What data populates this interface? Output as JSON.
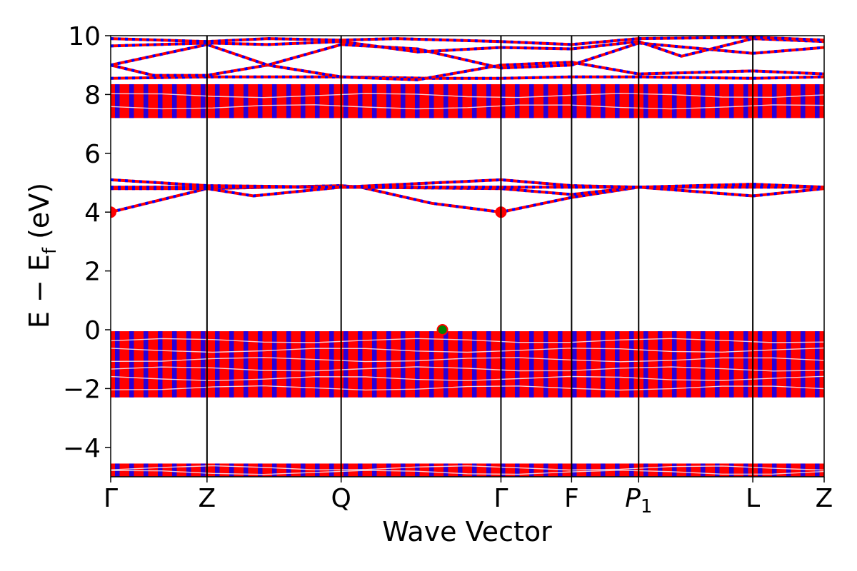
{
  "chart_data": {
    "type": "line",
    "xlabel": "Wave Vector",
    "ylabel_parts": {
      "main": "E − E",
      "sub": "f",
      "unit": " (eV)"
    },
    "ylim": [
      -5,
      10
    ],
    "yticks": [
      {
        "value": -4,
        "label": "−4"
      },
      {
        "value": -2,
        "label": "−2"
      },
      {
        "value": 0,
        "label": "0"
      },
      {
        "value": 2,
        "label": "2"
      },
      {
        "value": 4,
        "label": "4"
      },
      {
        "value": 6,
        "label": "6"
      },
      {
        "value": 8,
        "label": "8"
      },
      {
        "value": 10,
        "label": "10"
      }
    ],
    "kpoints": [
      {
        "label": "Γ",
        "pos": 0.0
      },
      {
        "label": "Z",
        "pos": 0.135
      },
      {
        "label": "Q",
        "pos": 0.323
      },
      {
        "label": "Γ",
        "pos": 0.547
      },
      {
        "label": "F",
        "pos": 0.646
      },
      {
        "label": "P",
        "sub": "1",
        "pos": 0.74
      },
      {
        "label": "L",
        "pos": 0.9
      },
      {
        "label": "Z",
        "pos": 1.0
      }
    ],
    "spin_colors": {
      "up": "#ff0000",
      "down": "#0000ff"
    },
    "dense_bands": [
      {
        "name": "valence-low",
        "top": -4.55,
        "bottom": -5.0
      },
      {
        "name": "valence",
        "top": -0.05,
        "bottom": -2.3
      },
      {
        "name": "conduction-upper",
        "top": 8.35,
        "bottom": 7.2
      }
    ],
    "bands": [
      {
        "x": [
          0,
          0.135,
          0.323,
          0.35,
          0.45,
          0.547,
          0.646,
          0.74,
          0.9,
          1.0
        ],
        "y": [
          4.0,
          4.8,
          4.9,
          4.85,
          4.3,
          4.0,
          4.5,
          4.85,
          4.55,
          4.8
        ]
      },
      {
        "x": [
          0,
          0.135,
          0.2,
          0.323,
          0.547,
          0.646,
          0.74,
          0.9,
          1.0
        ],
        "y": [
          4.8,
          4.8,
          4.55,
          4.85,
          4.8,
          4.6,
          4.85,
          4.9,
          4.85
        ]
      },
      {
        "x": [
          0,
          0.135,
          0.323,
          0.547,
          0.646,
          0.74,
          0.9,
          1.0
        ],
        "y": [
          5.1,
          4.9,
          4.85,
          5.1,
          4.9,
          4.85,
          4.85,
          4.85
        ]
      },
      {
        "x": [
          0,
          0.135,
          0.323,
          0.547,
          0.646,
          0.74,
          0.9,
          1.0
        ],
        "y": [
          4.85,
          4.85,
          4.85,
          4.85,
          4.85,
          4.85,
          4.95,
          4.85
        ]
      },
      {
        "x": [
          0,
          0.135,
          0.2,
          0.323,
          0.45,
          0.547,
          0.646,
          0.74,
          0.9,
          1.0
        ],
        "y": [
          8.55,
          8.6,
          8.6,
          8.6,
          8.55,
          8.55,
          8.6,
          8.6,
          8.55,
          8.6
        ]
      },
      {
        "x": [
          0,
          0.06,
          0.135,
          0.22,
          0.323,
          0.43,
          0.547,
          0.646,
          0.74,
          0.9,
          1.0
        ],
        "y": [
          9.0,
          8.65,
          8.65,
          9.0,
          8.6,
          8.5,
          9.0,
          9.1,
          8.7,
          8.8,
          8.7
        ]
      },
      {
        "x": [
          0,
          0.135,
          0.22,
          0.323,
          0.43,
          0.547,
          0.646,
          0.74,
          0.9,
          1.0
        ],
        "y": [
          9.0,
          9.7,
          9.0,
          9.7,
          9.55,
          8.9,
          9.0,
          9.75,
          9.4,
          9.6
        ]
      },
      {
        "x": [
          0,
          0.135,
          0.22,
          0.323,
          0.43,
          0.547,
          0.646,
          0.74,
          0.8,
          0.9,
          1.0
        ],
        "y": [
          9.65,
          9.75,
          9.7,
          9.8,
          9.45,
          9.6,
          9.55,
          9.8,
          9.3,
          9.9,
          9.8
        ]
      },
      {
        "x": [
          0,
          0.135,
          0.22,
          0.323,
          0.4,
          0.547,
          0.646,
          0.74,
          0.9,
          1.0
        ],
        "y": [
          9.9,
          9.8,
          9.9,
          9.85,
          9.9,
          9.8,
          9.7,
          9.9,
          9.95,
          9.85
        ]
      }
    ],
    "markers": [
      {
        "x": 0.0,
        "y": 4.0,
        "color": "#ff0000"
      },
      {
        "x": 0.547,
        "y": 4.0,
        "color": "#ff0000"
      },
      {
        "x": 0.465,
        "y": 0.0,
        "color": "#008000"
      }
    ]
  }
}
